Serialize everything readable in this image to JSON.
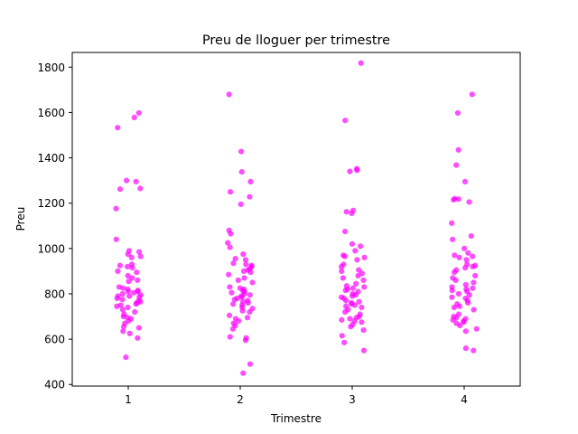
{
  "chart_data": {
    "type": "scatter",
    "title": "Preu de lloguer per trimestre",
    "xlabel": "Trimestre",
    "ylabel": "Preu",
    "xlim": [
      0.5,
      4.5
    ],
    "ylim": [
      393,
      1865
    ],
    "x_ticks": [
      "1",
      "2",
      "3",
      "4"
    ],
    "y_ticks": [
      400,
      600,
      800,
      1000,
      1200,
      1400,
      1600,
      1800
    ],
    "grid": false,
    "legend": "none",
    "marker_color": "#ff00ff",
    "marker_alpha": 0.7,
    "series": [
      {
        "category": "1",
        "values": [
          1598,
          1578,
          1533,
          1300,
          1295,
          1265,
          1262,
          1176,
          1040,
          990,
          985,
          975,
          965,
          960,
          930,
          925,
          920,
          915,
          900,
          895,
          880,
          870,
          860,
          855,
          830,
          825,
          820,
          815,
          810,
          810,
          805,
          800,
          795,
          790,
          790,
          785,
          780,
          775,
          770,
          765,
          760,
          755,
          750,
          745,
          740,
          730,
          720,
          710,
          700,
          695,
          690,
          680,
          670,
          655,
          650,
          635,
          625,
          605,
          520
        ]
      },
      {
        "category": "2",
        "values": [
          1680,
          1428,
          1338,
          1295,
          1250,
          1228,
          1195,
          1080,
          1065,
          1025,
          1005,
          975,
          955,
          950,
          935,
          930,
          925,
          920,
          910,
          905,
          900,
          895,
          885,
          870,
          860,
          850,
          830,
          825,
          820,
          815,
          810,
          805,
          800,
          795,
          790,
          785,
          780,
          775,
          770,
          765,
          760,
          755,
          750,
          740,
          735,
          725,
          720,
          705,
          695,
          690,
          680,
          670,
          660,
          645,
          610,
          605,
          595,
          490,
          450
        ]
      },
      {
        "category": "3",
        "values": [
          1818,
          1565,
          1352,
          1345,
          1340,
          1168,
          1162,
          1155,
          1075,
          1020,
          1010,
          990,
          970,
          965,
          960,
          950,
          930,
          920,
          905,
          900,
          890,
          880,
          870,
          860,
          845,
          835,
          830,
          825,
          820,
          815,
          810,
          800,
          795,
          790,
          785,
          780,
          770,
          765,
          760,
          755,
          750,
          745,
          740,
          730,
          720,
          710,
          700,
          695,
          690,
          685,
          680,
          675,
          665,
          655,
          640,
          615,
          585,
          550
        ]
      },
      {
        "category": "4",
        "values": [
          1680,
          1598,
          1435,
          1368,
          1295,
          1220,
          1218,
          1215,
          1205,
          1112,
          1055,
          1040,
          1000,
          980,
          970,
          965,
          960,
          950,
          930,
          925,
          920,
          915,
          905,
          895,
          880,
          870,
          860,
          850,
          840,
          830,
          825,
          820,
          815,
          810,
          800,
          795,
          785,
          780,
          770,
          760,
          755,
          745,
          740,
          730,
          710,
          700,
          695,
          690,
          685,
          680,
          675,
          670,
          660,
          645,
          635,
          560,
          550
        ]
      }
    ]
  }
}
